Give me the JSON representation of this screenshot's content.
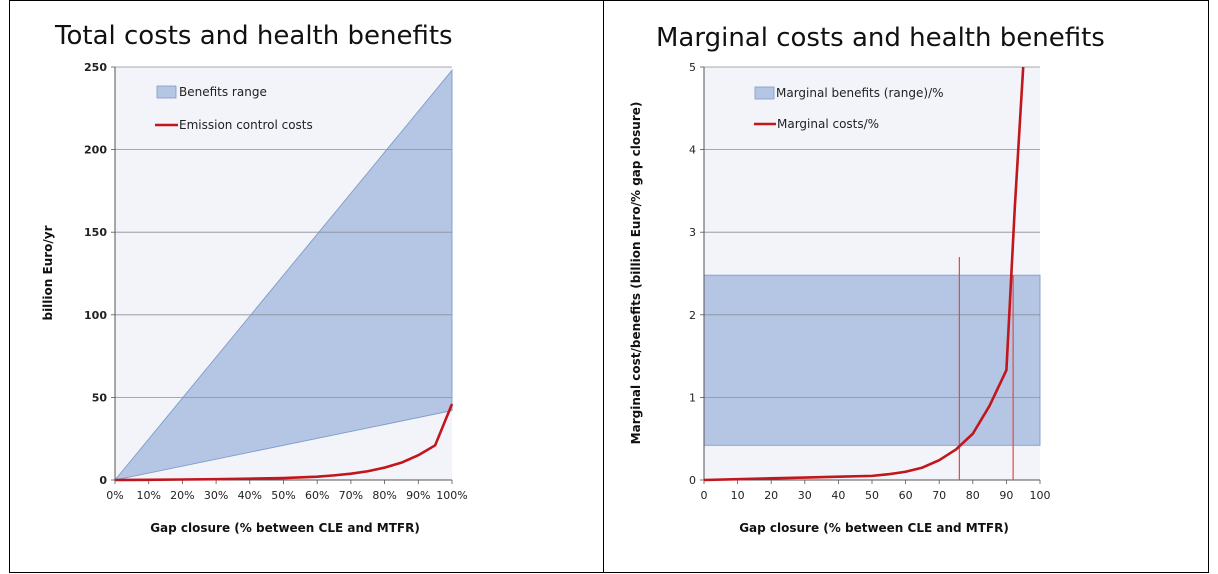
{
  "chart_data": [
    {
      "type": "area",
      "title": "Total costs and health benefits",
      "xlabel": "Gap closure (% between CLE and MTFR)",
      "ylabel": "billion Euro/yr",
      "xlim": [
        0,
        100
      ],
      "ylim": [
        0,
        250
      ],
      "x_ticks": [
        "0%",
        "10%",
        "20%",
        "30%",
        "40%",
        "50%",
        "60%",
        "70%",
        "80%",
        "90%",
        "100%"
      ],
      "y_ticks": [
        "0",
        "50",
        "100",
        "150",
        "200",
        "250"
      ],
      "grid": true,
      "legend_position": "top-left",
      "benefits_range": {
        "name": "Benefits range",
        "color": "#b4c6e3",
        "x": [
          0,
          100
        ],
        "lower": [
          0,
          42
        ],
        "upper": [
          0,
          248
        ]
      },
      "series": [
        {
          "name": "Emission control costs",
          "color": "#c0161c",
          "x": [
            0,
            10,
            20,
            30,
            40,
            50,
            60,
            65,
            70,
            75,
            80,
            85,
            90,
            95,
            100
          ],
          "values": [
            0,
            0.1,
            0.3,
            0.5,
            0.8,
            1.2,
            2,
            2.8,
            3.8,
            5.3,
            7.5,
            10.5,
            15,
            21,
            46
          ]
        }
      ]
    },
    {
      "type": "area",
      "title": "Marginal costs and health benefits",
      "xlabel": "Gap closure (% between CLE and MTFR)",
      "ylabel": "Marginal cost/benefits (billion Euro/% gap closure)",
      "xlim": [
        0,
        100
      ],
      "ylim": [
        0,
        5
      ],
      "x_ticks": [
        "0",
        "10",
        "20",
        "30",
        "40",
        "50",
        "60",
        "70",
        "80",
        "90",
        "100"
      ],
      "y_ticks": [
        "0",
        "1",
        "2",
        "3",
        "4",
        "5"
      ],
      "grid": true,
      "legend_position": "top-center",
      "benefits_range": {
        "name": "Marginal benefits (range)/%",
        "color": "#b4c6e3",
        "x": [
          0,
          100
        ],
        "lower": [
          0.42,
          0.42
        ],
        "upper": [
          2.48,
          2.48
        ]
      },
      "vertical_markers": [
        {
          "x": 76,
          "y_top": 2.7
        },
        {
          "x": 92,
          "y_top": 2.48
        }
      ],
      "series": [
        {
          "name": "Marginal costs/%",
          "color": "#c0161c",
          "x": [
            0,
            10,
            20,
            30,
            40,
            50,
            55,
            60,
            65,
            70,
            75,
            80,
            85,
            90,
            92.5,
            95
          ],
          "values": [
            0,
            0.01,
            0.02,
            0.03,
            0.04,
            0.05,
            0.07,
            0.1,
            0.15,
            0.24,
            0.37,
            0.56,
            0.9,
            1.33,
            3.3,
            5.0
          ]
        }
      ]
    }
  ]
}
